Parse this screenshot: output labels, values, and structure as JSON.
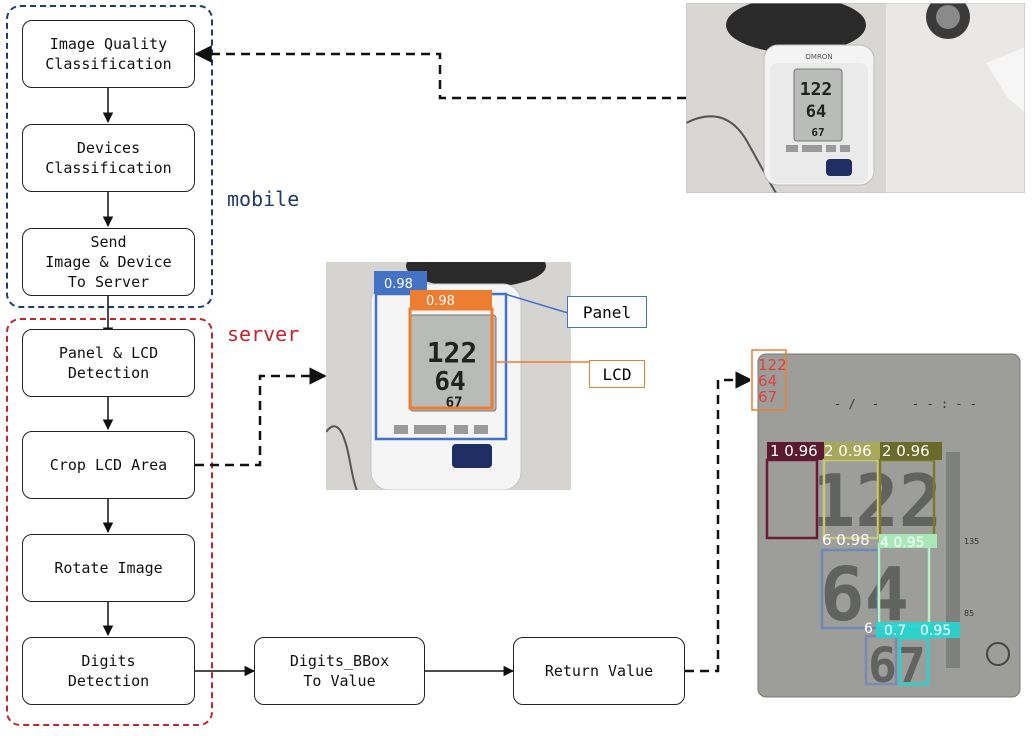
{
  "groups": {
    "mobile": {
      "label": "mobile",
      "color": "#1f3a6b"
    },
    "server": {
      "label": "server",
      "color": "#c0262c"
    }
  },
  "steps": {
    "quality": "Image Quality\nClassification",
    "devices": "Devices\nClassification",
    "send": "Send\nImage & Device\nTo Server",
    "panel_lcd": "Panel & LCD\nDetection",
    "crop": "Crop LCD Area",
    "rotate": "Rotate Image",
    "digits_detect": "Digits\nDetection",
    "bbox_to_value": "Digits_BBox\nTo Value",
    "return_value": "Return Value"
  },
  "photo_device": {
    "brand": "OMRON",
    "readings": [
      "122",
      "64",
      "67"
    ]
  },
  "photo_detection": {
    "panel_score": "0.98",
    "lcd_score": "0.98",
    "panel_tag": "Panel",
    "lcd_tag": "LCD",
    "readings": [
      "122",
      "64",
      "67"
    ]
  },
  "photo_digits": {
    "result": [
      "122",
      "64",
      "67"
    ],
    "labels": [
      "1 0.96",
      "2 0.96",
      "2 0.96",
      "6 0.98",
      "4 0.95",
      "6",
      "0.7",
      "0.95"
    ],
    "ticks": [
      "135",
      "85"
    ]
  },
  "colors": {
    "panel": "#4472c4",
    "lcd": "#ed7d31",
    "result_text": "#e0403a"
  }
}
